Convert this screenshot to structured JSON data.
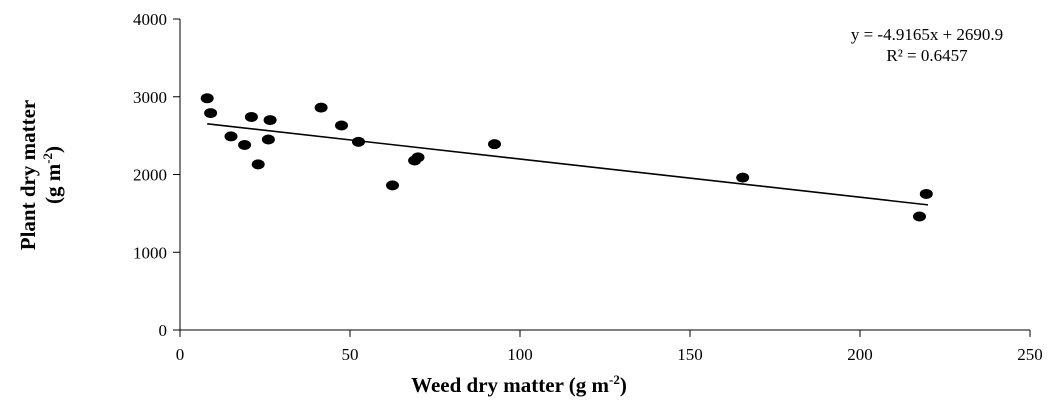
{
  "chart_data": {
    "type": "scatter",
    "title": "",
    "xlabel": {
      "prefix": "Weed dry matter (g m",
      "sup": "-2",
      "suffix": ")"
    },
    "ylabel": {
      "line1": "Plant dry matter",
      "line2_prefix": "(g m",
      "line2_sup": "-2",
      "line2_suffix": ")"
    },
    "xlim": [
      0,
      250
    ],
    "ylim": [
      0,
      4000
    ],
    "x_ticks": [
      0,
      50,
      100,
      150,
      200,
      250
    ],
    "y_ticks": [
      0,
      1000,
      2000,
      3000,
      4000
    ],
    "grid": false,
    "points": [
      {
        "x": 8,
        "y": 2980
      },
      {
        "x": 9,
        "y": 2790
      },
      {
        "x": 15,
        "y": 2490
      },
      {
        "x": 19,
        "y": 2380
      },
      {
        "x": 21,
        "y": 2740
      },
      {
        "x": 23,
        "y": 2130
      },
      {
        "x": 26,
        "y": 2450
      },
      {
        "x": 26.5,
        "y": 2700
      },
      {
        "x": 41.5,
        "y": 2860
      },
      {
        "x": 47.5,
        "y": 2630
      },
      {
        "x": 52.5,
        "y": 2420
      },
      {
        "x": 62.5,
        "y": 1860
      },
      {
        "x": 69,
        "y": 2180
      },
      {
        "x": 70,
        "y": 2220
      },
      {
        "x": 92.5,
        "y": 2390
      },
      {
        "x": 165.5,
        "y": 1960
      },
      {
        "x": 217.5,
        "y": 1460
      },
      {
        "x": 219.5,
        "y": 1750
      }
    ],
    "trendline": {
      "slope": -4.9165,
      "intercept": 2690.9,
      "x_range": [
        8,
        220
      ]
    },
    "equation_text": "y = -4.9165x + 2690.9",
    "r2_text": "R² = 0.6457"
  }
}
